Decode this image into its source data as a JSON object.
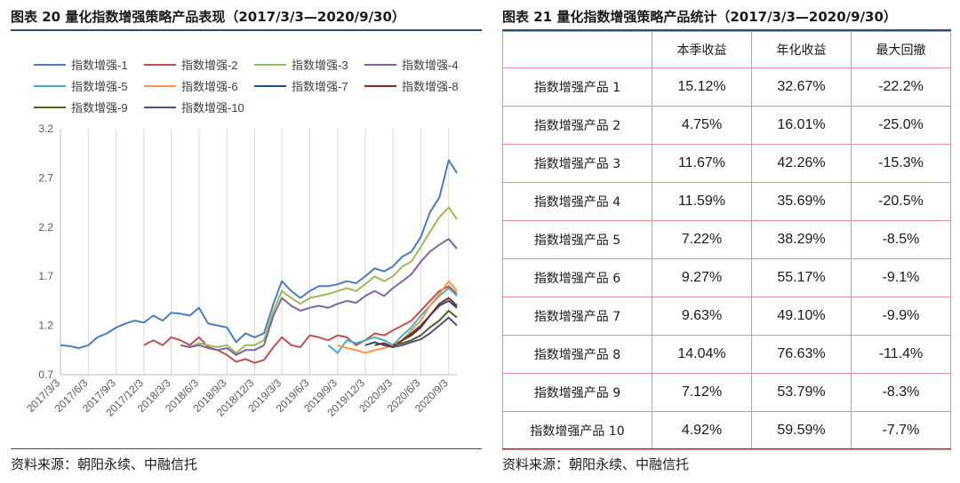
{
  "left_panel": {
    "title": "图表 20   量化指数增强策略产品表现（2017/3/3—2020/9/30）",
    "source": "资料来源：朝阳永续、中融信托"
  },
  "right_panel": {
    "title": "图表 21   量化指数增强策略产品统计（2017/3/3—2020/9/30）",
    "source": "资料来源：朝阳永续、中融信托",
    "columns": [
      "",
      "本季收益",
      "年化收益",
      "最大回撤"
    ],
    "rows": [
      {
        "name": "指数增强产品 1",
        "quarter": "15.12%",
        "annual": "32.67%",
        "drawdown": "-22.2%"
      },
      {
        "name": "指数增强产品 2",
        "quarter": "4.75%",
        "annual": "16.01%",
        "drawdown": "-25.0%"
      },
      {
        "name": "指数增强产品 3",
        "quarter": "11.67%",
        "annual": "42.26%",
        "drawdown": "-15.3%"
      },
      {
        "name": "指数增强产品 4",
        "quarter": "11.59%",
        "annual": "35.69%",
        "drawdown": "-20.5%"
      },
      {
        "name": "指数增强产品 5",
        "quarter": "7.22%",
        "annual": "38.29%",
        "drawdown": "-8.5%"
      },
      {
        "name": "指数增强产品 6",
        "quarter": "9.27%",
        "annual": "55.17%",
        "drawdown": "-9.1%"
      },
      {
        "name": "指数增强产品 7",
        "quarter": "9.63%",
        "annual": "49.10%",
        "drawdown": "-9.9%"
      },
      {
        "name": "指数增强产品 8",
        "quarter": "14.04%",
        "annual": "76.63%",
        "drawdown": "-11.4%"
      },
      {
        "name": "指数增强产品 9",
        "quarter": "7.12%",
        "annual": "53.79%",
        "drawdown": "-8.3%"
      },
      {
        "name": "指数增强产品 10",
        "quarter": "4.92%",
        "annual": "59.59%",
        "drawdown": "-7.7%"
      }
    ]
  },
  "chart_data": {
    "type": "line",
    "title": "",
    "xlabel": "",
    "ylabel": "",
    "ylim": [
      0.7,
      3.2
    ],
    "yticks": [
      "3.2",
      "2.7",
      "2.2",
      "1.7",
      "1.2",
      "0.7"
    ],
    "xticks": [
      "2017/3/3",
      "2017/6/3",
      "2017/9/3",
      "2017/12/3",
      "2018/3/3",
      "2018/6/3",
      "2018/9/3",
      "2018/12/3",
      "2019/3/3",
      "2019/6/3",
      "2019/9/3",
      "2019/12/3",
      "2020/3/3",
      "2020/6/3",
      "2020/9/3"
    ],
    "grid": "vertical",
    "legend_position": "top",
    "series": [
      {
        "name": "指数增强-1",
        "color": "#4a7ebb",
        "x": [
          "2017/3/3",
          "2017/4/3",
          "2017/5/3",
          "2017/6/3",
          "2017/7/3",
          "2017/8/3",
          "2017/9/3",
          "2017/10/3",
          "2017/11/3",
          "2017/12/3",
          "2018/1/3",
          "2018/2/3",
          "2018/3/3",
          "2018/4/3",
          "2018/5/3",
          "2018/6/3",
          "2018/7/3",
          "2018/8/3",
          "2018/9/3",
          "2018/10/3",
          "2018/11/3",
          "2018/12/3",
          "2019/1/3",
          "2019/2/3",
          "2019/3/3",
          "2019/4/3",
          "2019/5/3",
          "2019/6/3",
          "2019/7/3",
          "2019/8/3",
          "2019/9/3",
          "2019/10/3",
          "2019/11/3",
          "2019/12/3",
          "2020/1/3",
          "2020/2/3",
          "2020/3/3",
          "2020/4/3",
          "2020/5/3",
          "2020/6/3",
          "2020/7/3",
          "2020/8/3",
          "2020/9/3",
          "2020/9/30"
        ],
        "values": [
          1.0,
          0.99,
          0.97,
          1.0,
          1.08,
          1.12,
          1.18,
          1.22,
          1.25,
          1.23,
          1.3,
          1.25,
          1.33,
          1.32,
          1.3,
          1.38,
          1.22,
          1.2,
          1.18,
          1.03,
          1.12,
          1.08,
          1.12,
          1.42,
          1.65,
          1.55,
          1.48,
          1.55,
          1.6,
          1.6,
          1.62,
          1.65,
          1.63,
          1.7,
          1.78,
          1.75,
          1.8,
          1.9,
          1.95,
          2.1,
          2.35,
          2.5,
          2.88,
          2.75
        ]
      },
      {
        "name": "指数增强-2",
        "color": "#c0504d",
        "x": [
          "2017/12/3",
          "2018/1/3",
          "2018/2/3",
          "2018/3/3",
          "2018/4/3",
          "2018/5/3",
          "2018/6/3",
          "2018/7/3",
          "2018/8/3",
          "2018/9/3",
          "2018/10/3",
          "2018/11/3",
          "2018/12/3",
          "2019/1/3",
          "2019/2/3",
          "2019/3/3",
          "2019/4/3",
          "2019/5/3",
          "2019/6/3",
          "2019/7/3",
          "2019/8/3",
          "2019/9/3",
          "2019/10/3",
          "2019/11/3",
          "2019/12/3",
          "2020/1/3",
          "2020/2/3",
          "2020/3/3",
          "2020/4/3",
          "2020/5/3",
          "2020/6/3",
          "2020/7/3",
          "2020/8/3",
          "2020/9/3",
          "2020/9/30"
        ],
        "values": [
          1.0,
          1.05,
          1.0,
          1.08,
          1.05,
          1.0,
          1.08,
          0.98,
          0.95,
          0.9,
          0.83,
          0.86,
          0.82,
          0.85,
          0.98,
          1.08,
          1.0,
          0.98,
          1.1,
          1.08,
          1.05,
          1.1,
          1.08,
          1.0,
          1.05,
          1.12,
          1.1,
          1.15,
          1.2,
          1.25,
          1.35,
          1.45,
          1.55,
          1.6,
          1.52
        ]
      },
      {
        "name": "指数增强-3",
        "color": "#9bbb59",
        "x": [
          "2018/4/3",
          "2018/5/3",
          "2018/6/3",
          "2018/7/3",
          "2018/8/3",
          "2018/9/3",
          "2018/10/3",
          "2018/11/3",
          "2018/12/3",
          "2019/1/3",
          "2019/2/3",
          "2019/3/3",
          "2019/4/3",
          "2019/5/3",
          "2019/6/3",
          "2019/7/3",
          "2019/8/3",
          "2019/9/3",
          "2019/10/3",
          "2019/11/3",
          "2019/12/3",
          "2020/1/3",
          "2020/2/3",
          "2020/3/3",
          "2020/4/3",
          "2020/5/3",
          "2020/6/3",
          "2020/7/3",
          "2020/8/3",
          "2020/9/3",
          "2020/9/30"
        ],
        "values": [
          1.0,
          0.98,
          1.02,
          1.0,
          0.98,
          1.0,
          0.92,
          1.0,
          1.0,
          1.05,
          1.35,
          1.55,
          1.48,
          1.42,
          1.48,
          1.5,
          1.52,
          1.55,
          1.58,
          1.55,
          1.62,
          1.7,
          1.65,
          1.7,
          1.8,
          1.85,
          2.0,
          2.15,
          2.3,
          2.4,
          2.28
        ]
      },
      {
        "name": "指数增强-4",
        "color": "#8064a2",
        "x": [
          "2018/4/3",
          "2018/5/3",
          "2018/6/3",
          "2018/7/3",
          "2018/8/3",
          "2018/9/3",
          "2018/10/3",
          "2018/11/3",
          "2018/12/3",
          "2019/1/3",
          "2019/2/3",
          "2019/3/3",
          "2019/4/3",
          "2019/5/3",
          "2019/6/3",
          "2019/7/3",
          "2019/8/3",
          "2019/9/3",
          "2019/10/3",
          "2019/11/3",
          "2019/12/3",
          "2020/1/3",
          "2020/2/3",
          "2020/3/3",
          "2020/4/3",
          "2020/5/3",
          "2020/6/3",
          "2020/7/3",
          "2020/8/3",
          "2020/9/3",
          "2020/9/30"
        ],
        "values": [
          1.0,
          0.98,
          1.0,
          0.97,
          0.95,
          0.97,
          0.9,
          0.95,
          0.95,
          1.0,
          1.3,
          1.48,
          1.4,
          1.35,
          1.38,
          1.4,
          1.38,
          1.42,
          1.45,
          1.43,
          1.5,
          1.55,
          1.5,
          1.58,
          1.65,
          1.72,
          1.85,
          1.95,
          2.02,
          2.08,
          1.98
        ]
      },
      {
        "name": "指数增强-5",
        "color": "#4bacc6",
        "x": [
          "2019/8/3",
          "2019/9/3",
          "2019/10/3",
          "2019/11/3",
          "2019/12/3",
          "2020/1/3",
          "2020/2/3",
          "2020/3/3",
          "2020/4/3",
          "2020/5/3",
          "2020/6/3",
          "2020/7/3",
          "2020/8/3",
          "2020/9/3",
          "2020/9/30"
        ],
        "values": [
          1.0,
          0.92,
          1.05,
          1.02,
          1.05,
          1.08,
          1.05,
          1.0,
          1.1,
          1.18,
          1.3,
          1.4,
          1.5,
          1.58,
          1.5
        ]
      },
      {
        "name": "指数增强-6",
        "color": "#f79646",
        "x": [
          "2019/9/3",
          "2019/10/3",
          "2019/11/3",
          "2019/12/3",
          "2020/1/3",
          "2020/2/3",
          "2020/3/3",
          "2020/4/3",
          "2020/5/3",
          "2020/6/3",
          "2020/7/3",
          "2020/8/3",
          "2020/9/3",
          "2020/9/30"
        ],
        "values": [
          1.0,
          0.97,
          0.95,
          0.92,
          0.95,
          0.97,
          1.0,
          1.05,
          1.15,
          1.25,
          1.4,
          1.52,
          1.65,
          1.55
        ]
      },
      {
        "name": "指数增强-7",
        "color": "#2c4d75",
        "x": [
          "2019/12/3",
          "2020/1/3",
          "2020/2/3",
          "2020/3/3",
          "2020/4/3",
          "2020/5/3",
          "2020/6/3",
          "2020/7/3",
          "2020/8/3",
          "2020/9/3",
          "2020/9/30"
        ],
        "values": [
          1.0,
          1.03,
          1.0,
          0.98,
          1.05,
          1.12,
          1.2,
          1.3,
          1.4,
          1.45,
          1.38
        ]
      },
      {
        "name": "指数增强-8",
        "color": "#772c2a",
        "x": [
          "2020/1/3",
          "2020/2/3",
          "2020/3/3",
          "2020/4/3",
          "2020/5/3",
          "2020/6/3",
          "2020/7/3",
          "2020/8/3",
          "2020/9/3",
          "2020/9/30"
        ],
        "values": [
          1.0,
          1.02,
          0.98,
          1.05,
          1.1,
          1.18,
          1.3,
          1.42,
          1.48,
          1.4
        ]
      },
      {
        "name": "指数增强-9",
        "color": "#4f6228",
        "x": [
          "2020/3/3",
          "2020/4/3",
          "2020/5/3",
          "2020/6/3",
          "2020/7/3",
          "2020/8/3",
          "2020/9/3",
          "2020/9/30"
        ],
        "values": [
          1.0,
          1.02,
          1.05,
          1.1,
          1.18,
          1.25,
          1.35,
          1.28
        ]
      },
      {
        "name": "指数增强-10",
        "color": "#5e4b80",
        "x": [
          "2020/3/3",
          "2020/4/3",
          "2020/5/3",
          "2020/6/3",
          "2020/7/3",
          "2020/8/3",
          "2020/9/3",
          "2020/9/30"
        ],
        "values": [
          0.98,
          1.0,
          1.03,
          1.06,
          1.12,
          1.2,
          1.28,
          1.2
        ]
      }
    ]
  }
}
